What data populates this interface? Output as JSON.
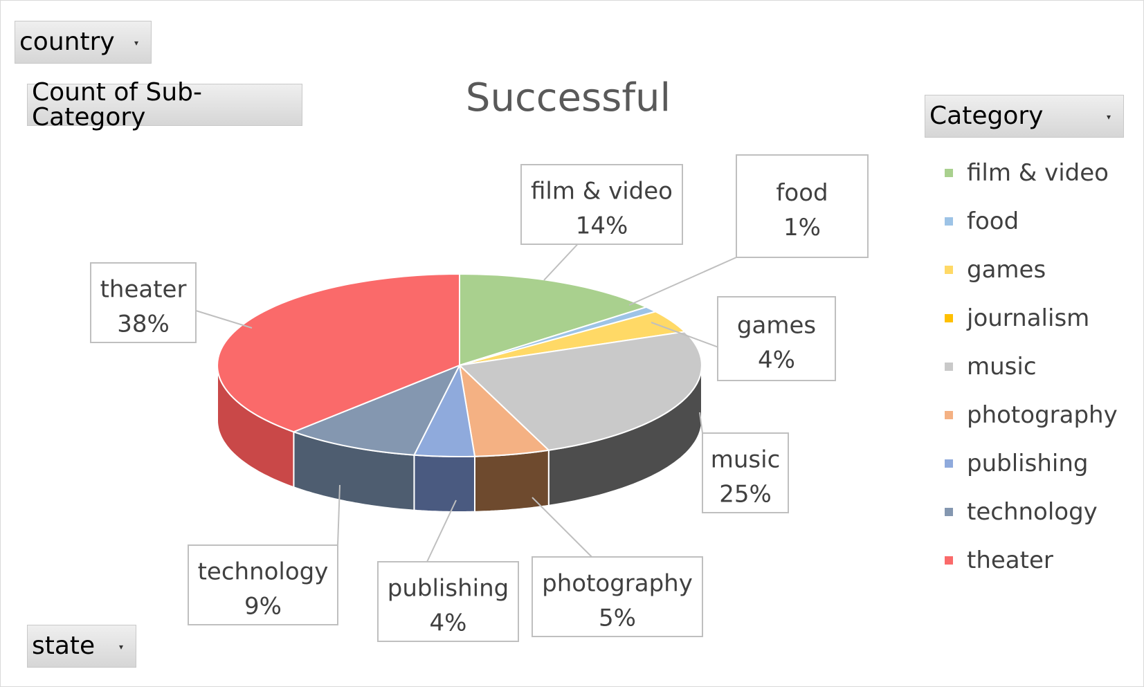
{
  "filters": {
    "country": {
      "label": "country"
    },
    "values": {
      "label": "Count of Sub-Category"
    },
    "category": {
      "label": "Category"
    },
    "state": {
      "label": "state"
    }
  },
  "chart_data": {
    "type": "pie",
    "title": "Successful",
    "legend_position": "right",
    "slices": [
      {
        "label": "film & video",
        "value": 14,
        "pct": "14%",
        "color": "#a9d08e",
        "side_color": "#7fa865"
      },
      {
        "label": "food",
        "value": 1,
        "pct": "1%",
        "color": "#9dc3e6",
        "side_color": "#6f9cc4"
      },
      {
        "label": "games",
        "value": 4,
        "pct": "4%",
        "color": "#ffd966",
        "side_color": "#d6b13f"
      },
      {
        "label": "journalism",
        "value": 0,
        "pct": "",
        "color": "#ffc000",
        "side_color": "#c99600"
      },
      {
        "label": "music",
        "value": 25,
        "pct": "25%",
        "color": "#c9c9c9",
        "side_color": "#4d4d4d"
      },
      {
        "label": "photography",
        "value": 5,
        "pct": "5%",
        "color": "#f4b183",
        "side_color": "#6e4a2e"
      },
      {
        "label": "publishing",
        "value": 4,
        "pct": "4%",
        "color": "#8faadc",
        "side_color": "#4a5a80"
      },
      {
        "label": "technology",
        "value": 9,
        "pct": "9%",
        "color": "#8497b0",
        "side_color": "#4e5d70"
      },
      {
        "label": "theater",
        "value": 38,
        "pct": "38%",
        "color": "#fa6a6a",
        "side_color": "#c94848"
      }
    ]
  }
}
